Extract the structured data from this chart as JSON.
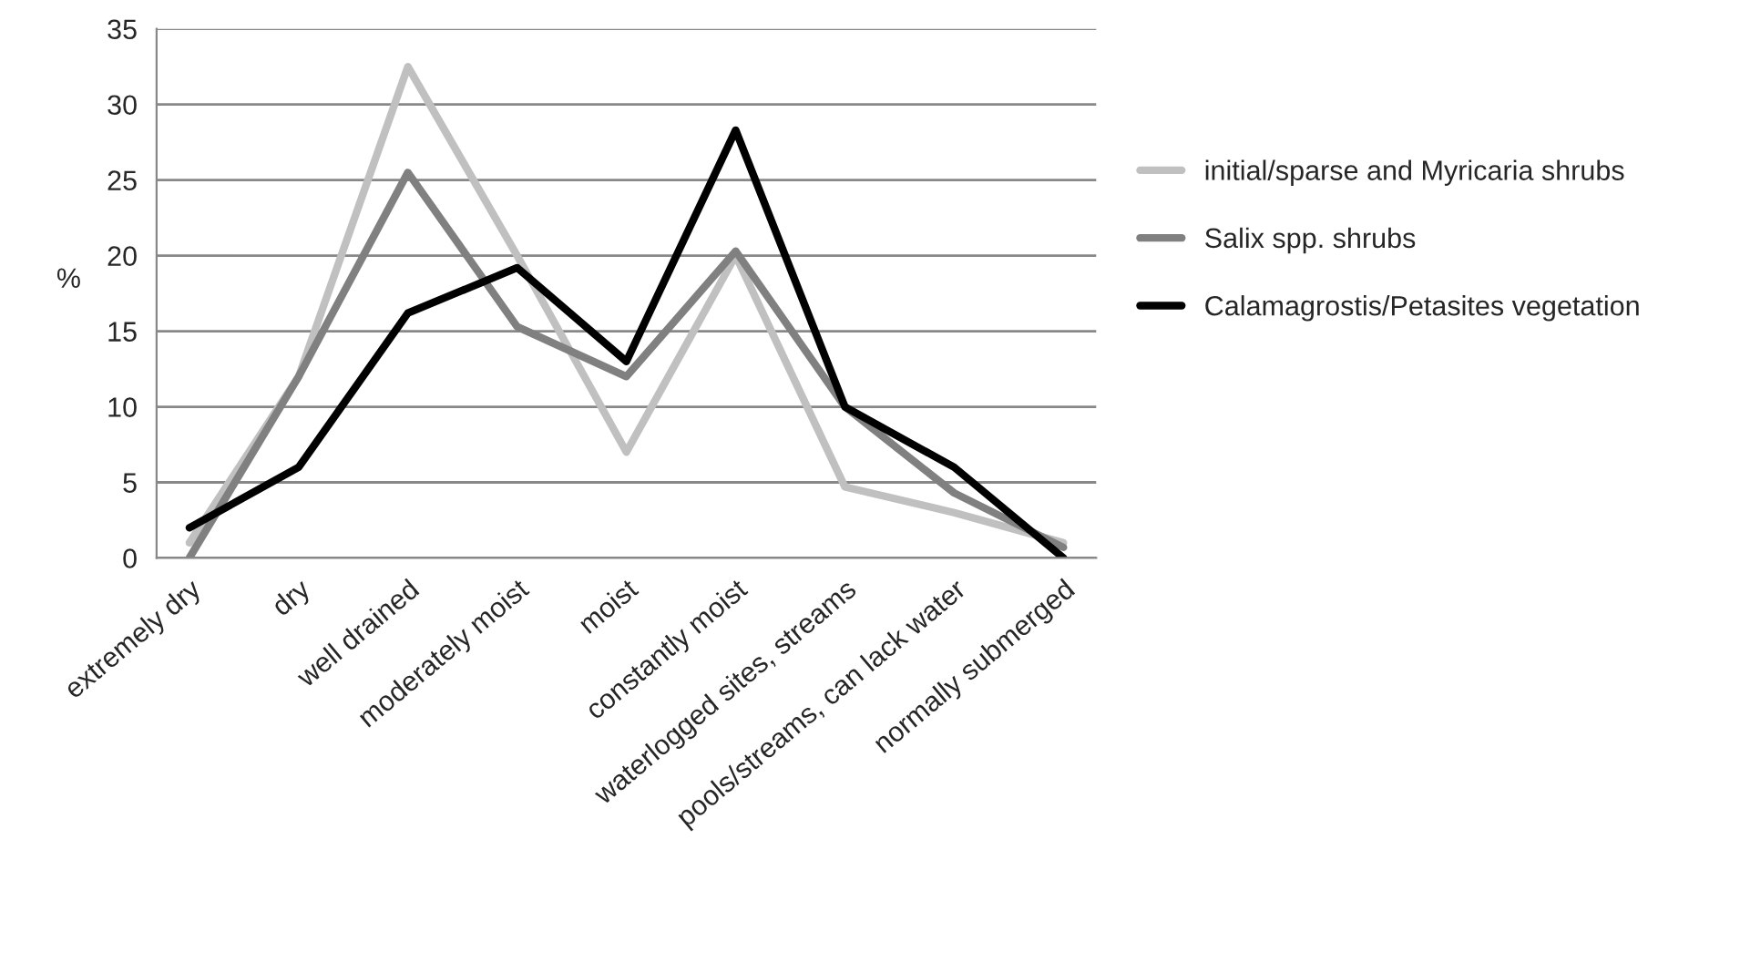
{
  "chart_data": {
    "type": "line",
    "ylabel": "%",
    "categories": [
      "extremely dry",
      "dry",
      "well drained",
      "moderately moist",
      "moist",
      "constantly moist",
      "waterlogged sites, streams",
      "pools/streams, can lack water",
      "normally submerged"
    ],
    "series": [
      {
        "name": "initial/sparse and Myricaria shrubs",
        "color": "#c0c0c0",
        "values": [
          1,
          12,
          32.5,
          20,
          7,
          20,
          4.7,
          3,
          1
        ]
      },
      {
        "name": "Salix spp. shrubs",
        "color": "#808080",
        "values": [
          0,
          12,
          25.5,
          15.3,
          12,
          20.3,
          10,
          4.3,
          0.7
        ]
      },
      {
        "name": "Calamagrostis/Petasites vegetation",
        "color": "#000000",
        "values": [
          2,
          6,
          16.2,
          19.2,
          13,
          28.3,
          10,
          6,
          0
        ]
      }
    ],
    "ylim": [
      0,
      35
    ],
    "yticks": [
      0,
      5,
      10,
      15,
      20,
      25,
      30,
      35
    ],
    "grid": "y",
    "legend": "right",
    "marker": "none",
    "line_style": "solid"
  }
}
